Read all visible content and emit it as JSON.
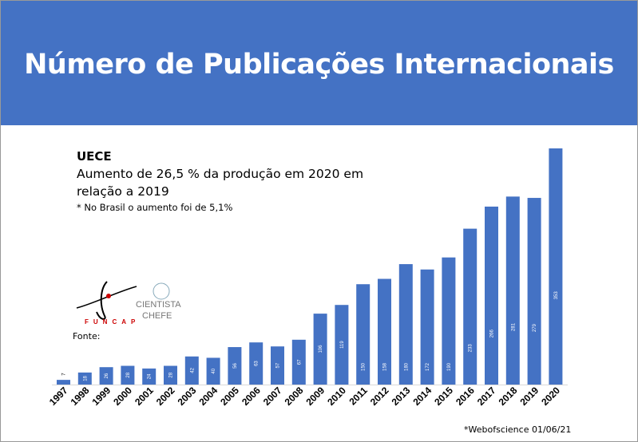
{
  "title": "Número de Publicações Internacionais",
  "text": {
    "institution": "UECE",
    "line1": "Aumento de 26,5 % da produção em 2020 em",
    "line2": "relação a 2019",
    "note": "* No Brasil o aumento foi de 5,1%",
    "fonte": "Fonte:",
    "source": "*Webofscience 01/06/21"
  },
  "logos": {
    "funcap": "FUNCAP",
    "cientista": "CIENTISTA CHEFE"
  },
  "colors": {
    "header": "#4472c4",
    "bar": "#4472c4"
  },
  "chart_data": {
    "type": "bar",
    "categories": [
      "1997",
      "1998",
      "1999",
      "2000",
      "2001",
      "2002",
      "2003",
      "2004",
      "2005",
      "2006",
      "2007",
      "2008",
      "2009",
      "2010",
      "2011",
      "2012",
      "2013",
      "2014",
      "2015",
      "2016",
      "2017",
      "2018",
      "2019",
      "2020"
    ],
    "values": [
      7,
      18,
      26,
      28,
      24,
      28,
      42,
      40,
      56,
      63,
      57,
      67,
      106,
      119,
      150,
      158,
      180,
      172,
      190,
      233,
      266,
      281,
      279,
      353
    ],
    "title": "",
    "xlabel": "",
    "ylabel": "",
    "grid": false,
    "data_labels": true
  }
}
